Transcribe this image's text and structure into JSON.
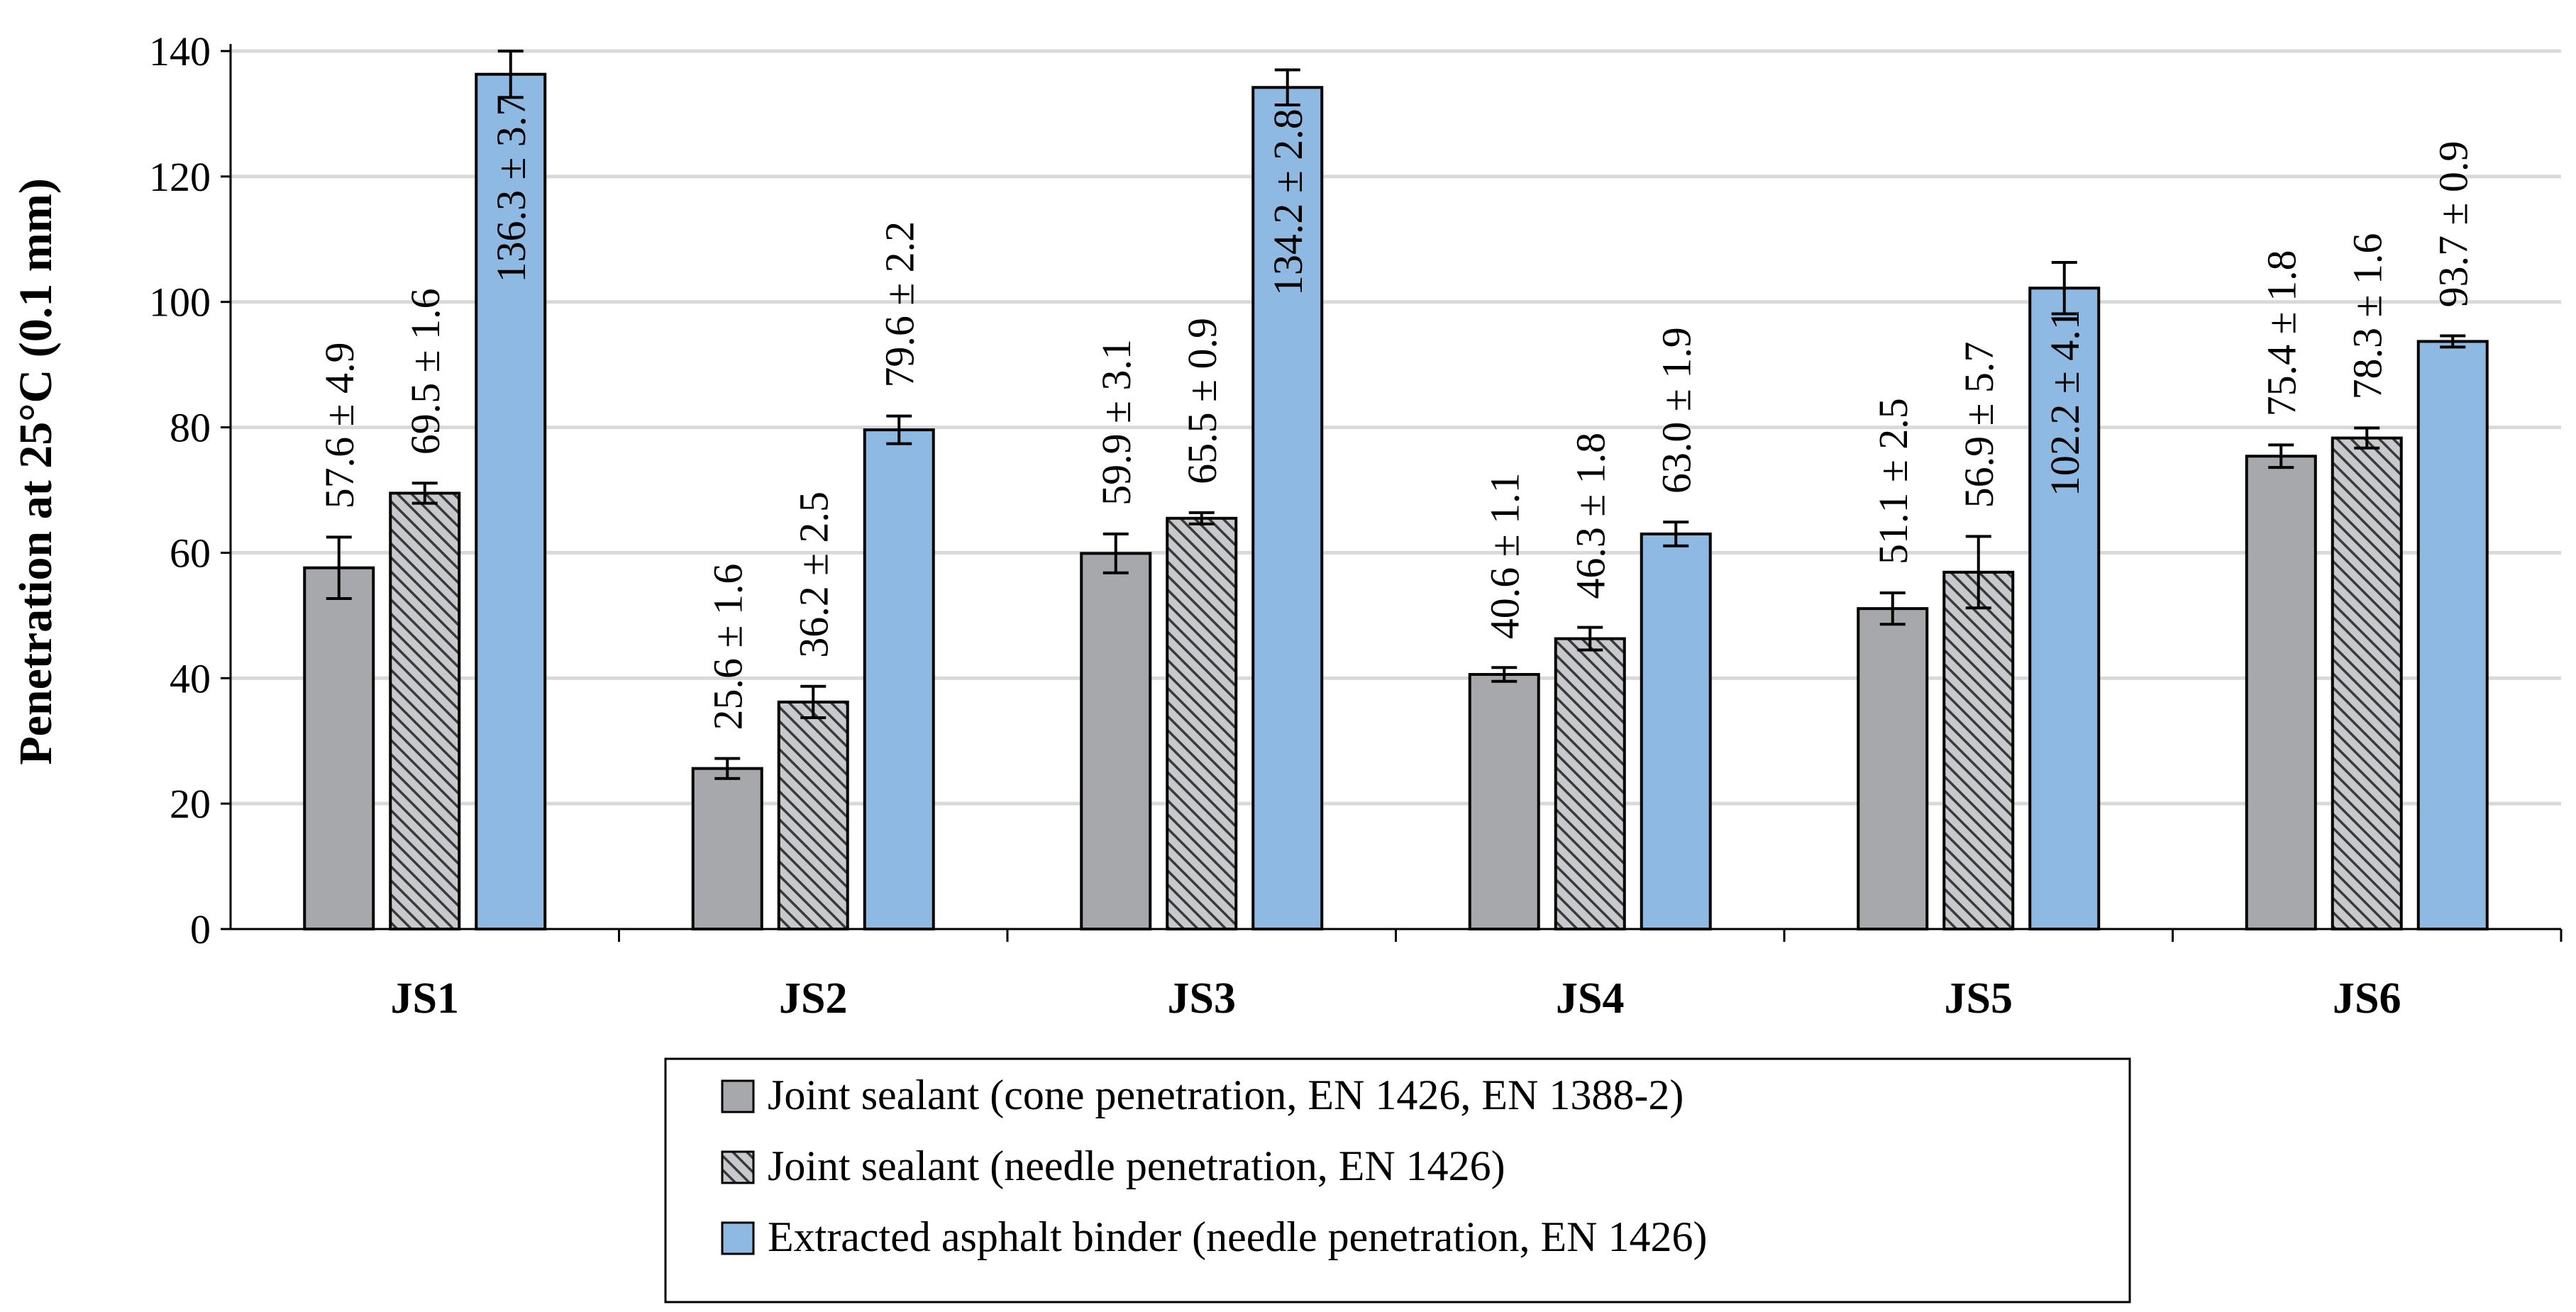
{
  "chart_data": {
    "type": "bar",
    "title": "",
    "xlabel": "",
    "ylabel": "Penetration at 25°C (0.1 mm)",
    "ylim": [
      0,
      140
    ],
    "yticks": [
      0,
      20,
      40,
      60,
      80,
      100,
      120,
      140
    ],
    "grid": true,
    "legend_position": "bottom",
    "categories": [
      "JS1",
      "JS2",
      "JS3",
      "JS4",
      "JS5",
      "JS6"
    ],
    "series": [
      {
        "name": "Joint sealant (cone penetration, EN 1426, EN 1388-2)",
        "color": "#a6a8ac",
        "pattern": "solid",
        "values": [
          57.6,
          25.6,
          59.9,
          40.6,
          51.1,
          75.4
        ],
        "errors": [
          4.9,
          1.6,
          3.1,
          1.1,
          2.5,
          1.8
        ],
        "labels": [
          "57.6 ± 4.9",
          "25.6 ± 1.6",
          "59.9 ± 3.1",
          "40.6 ± 1.1",
          "51.1 ± 2.5",
          "75.4 ± 1.8"
        ]
      },
      {
        "name": "Joint sealant (needle penetration, EN 1426)",
        "color": "#a6a8ac",
        "pattern": "hatched",
        "values": [
          69.5,
          36.2,
          65.5,
          46.3,
          56.9,
          78.3
        ],
        "errors": [
          1.6,
          2.5,
          0.9,
          1.8,
          5.7,
          1.6
        ],
        "labels": [
          "69.5 ± 1.6",
          "36.2 ± 2.5",
          "65.5 ± 0.9",
          "46.3 ± 1.8",
          "56.9 ± 5.7",
          "78.3 ± 1.6"
        ]
      },
      {
        "name": "Extracted asphalt binder (needle penetration, EN 1426)",
        "color": "#8db9e2",
        "pattern": "solid",
        "values": [
          136.3,
          79.6,
          134.2,
          63.0,
          102.2,
          93.7
        ],
        "errors": [
          3.7,
          2.2,
          2.8,
          1.9,
          4.1,
          0.9
        ],
        "labels": [
          "136.3 ± 3.7",
          "79.6 ± 2.2",
          "134.2 ± 2.8",
          "63.0 ± 1.9",
          "102.2 ± 4.1",
          "93.7 ± 0.9"
        ]
      }
    ]
  }
}
